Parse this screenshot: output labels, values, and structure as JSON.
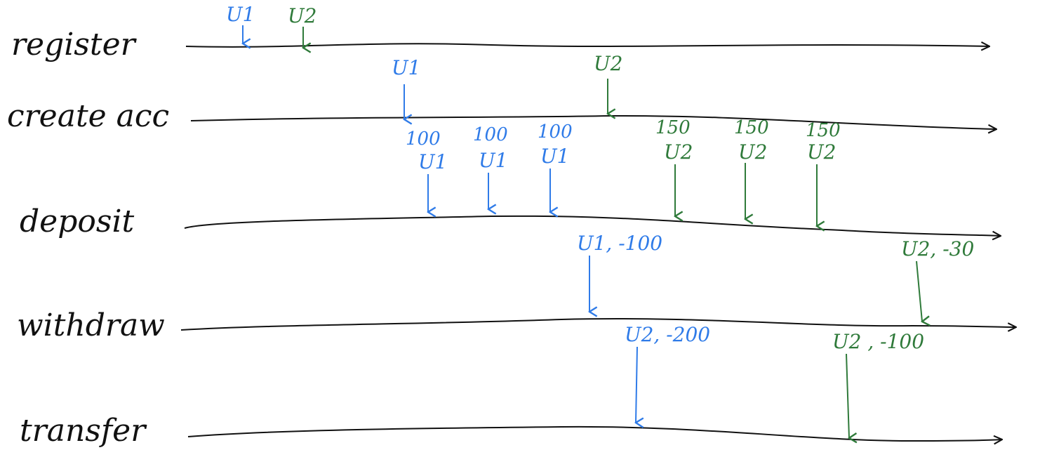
{
  "colors": {
    "line": "#111111",
    "u1": "#2f7be8",
    "u2": "#2f7a3a"
  },
  "lanes": [
    {
      "label": "register",
      "events": [
        {
          "user": "u1",
          "text": "U1"
        },
        {
          "user": "u2",
          "text": "U2"
        }
      ]
    },
    {
      "label": "create acc",
      "events": [
        {
          "user": "u1",
          "text": "U1"
        },
        {
          "user": "u2",
          "text": "U2"
        }
      ]
    },
    {
      "label": "deposit",
      "events": [
        {
          "user": "u1",
          "amount": "100",
          "text": "U1"
        },
        {
          "user": "u1",
          "amount": "100",
          "text": "U1"
        },
        {
          "user": "u1",
          "amount": "100",
          "text": "U1"
        },
        {
          "user": "u2",
          "amount": "150",
          "text": "U2"
        },
        {
          "user": "u2",
          "amount": "150",
          "text": "U2"
        },
        {
          "user": "u2",
          "amount": "150",
          "text": "U2"
        }
      ]
    },
    {
      "label": "withdraw",
      "events": [
        {
          "user": "u1",
          "text": "U1, -100"
        },
        {
          "user": "u2",
          "text": "U2, -30"
        }
      ]
    },
    {
      "label": "transfer",
      "events": [
        {
          "user": "u1",
          "text": "U2, -200"
        },
        {
          "user": "u2",
          "text": "U2 , -100"
        }
      ]
    }
  ]
}
